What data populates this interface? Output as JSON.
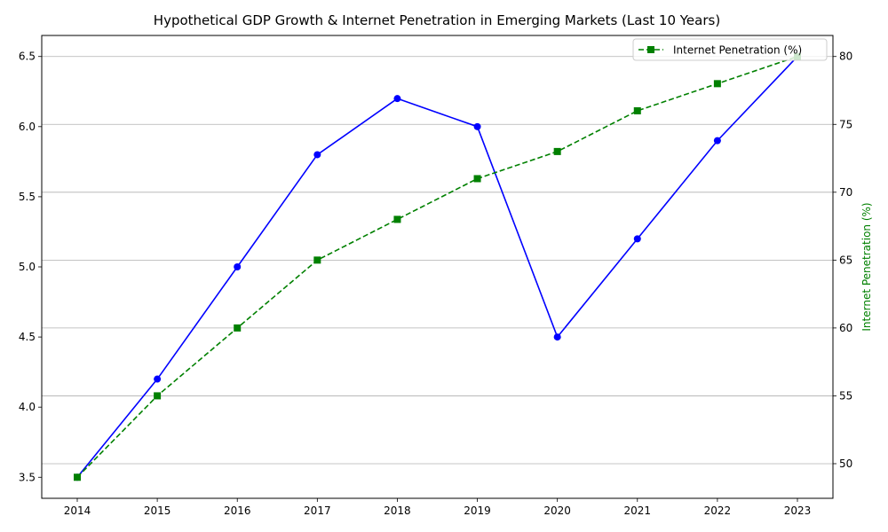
{
  "chart_data": {
    "type": "line",
    "title": "Hypothetical GDP Growth & Internet Penetration in Emerging Markets (Last 10 Years)",
    "x": [
      2014,
      2015,
      2016,
      2017,
      2018,
      2019,
      2020,
      2021,
      2022,
      2023
    ],
    "x_tick_labels": [
      "2014",
      "2015",
      "2016",
      "2017",
      "2018",
      "2019",
      "2020",
      "2021",
      "2022",
      "2023"
    ],
    "left_axis": {
      "label": "",
      "ylim": [
        3.35,
        6.65
      ],
      "ticks": [
        3.5,
        4.0,
        4.5,
        5.0,
        5.5,
        6.0,
        6.5
      ],
      "tick_labels": [
        "3.5",
        "4.0",
        "4.5",
        "5.0",
        "5.5",
        "6.0",
        "6.5"
      ]
    },
    "right_axis": {
      "label": "Internet Penetration (%)",
      "ylim": [
        47.45,
        81.55
      ],
      "ticks": [
        50,
        55,
        60,
        65,
        70,
        75,
        80
      ],
      "tick_labels": [
        "50",
        "55",
        "60",
        "65",
        "70",
        "75",
        "80"
      ]
    },
    "series": [
      {
        "name": "",
        "axis": "left",
        "values": [
          3.5,
          4.2,
          5.0,
          5.8,
          6.2,
          6.0,
          4.5,
          5.2,
          5.9,
          6.5
        ],
        "color": "#0000ff",
        "line_style": "solid",
        "marker": "circle"
      },
      {
        "name": "Internet Penetration (%)",
        "axis": "right",
        "values": [
          49,
          55,
          60,
          65,
          68,
          71,
          73,
          76,
          78,
          80
        ],
        "color": "#008000",
        "line_style": "dashed",
        "marker": "square"
      }
    ],
    "grid": "horizontal, right axis ticks",
    "legend": {
      "placement": "top-right",
      "entries": [
        "Internet Penetration (%)"
      ]
    }
  }
}
